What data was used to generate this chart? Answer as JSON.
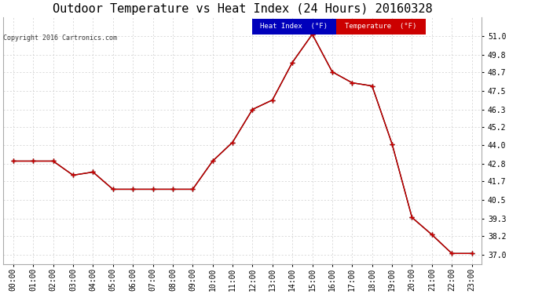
{
  "title": "Outdoor Temperature vs Heat Index (24 Hours) 20160328",
  "copyright": "Copyright 2016 Cartronics.com",
  "x_labels": [
    "00:00",
    "01:00",
    "02:00",
    "03:00",
    "04:00",
    "05:00",
    "06:00",
    "07:00",
    "08:00",
    "09:00",
    "10:00",
    "11:00",
    "12:00",
    "13:00",
    "14:00",
    "15:00",
    "16:00",
    "17:00",
    "18:00",
    "19:00",
    "20:00",
    "21:00",
    "22:00",
    "23:00"
  ],
  "temperature": [
    43.0,
    43.0,
    43.0,
    42.1,
    42.3,
    41.2,
    41.2,
    41.2,
    41.2,
    41.2,
    43.0,
    44.2,
    46.3,
    46.9,
    49.3,
    51.1,
    48.7,
    48.0,
    47.8,
    44.1,
    39.4,
    38.3,
    37.1,
    37.1
  ],
  "heat_index": [
    43.0,
    43.0,
    43.0,
    42.1,
    42.3,
    41.2,
    41.2,
    41.2,
    41.2,
    41.2,
    43.0,
    44.2,
    46.3,
    46.9,
    49.3,
    51.1,
    48.7,
    48.0,
    47.8,
    44.1,
    39.4,
    38.3,
    37.1,
    37.1
  ],
  "ylim": [
    36.4,
    52.2
  ],
  "yticks": [
    37.0,
    38.2,
    39.3,
    40.5,
    41.7,
    42.8,
    44.0,
    45.2,
    46.3,
    47.5,
    48.7,
    49.8,
    51.0
  ],
  "temp_color": "#cc0000",
  "heat_index_color": "#000000",
  "background_color": "#ffffff",
  "grid_color": "#cccccc",
  "title_fontsize": 11,
  "copyright_fontsize": 6,
  "tick_fontsize": 7,
  "legend_heat_index_bg": "#0000bb",
  "legend_temp_bg": "#cc0000",
  "legend_text_color": "#ffffff"
}
